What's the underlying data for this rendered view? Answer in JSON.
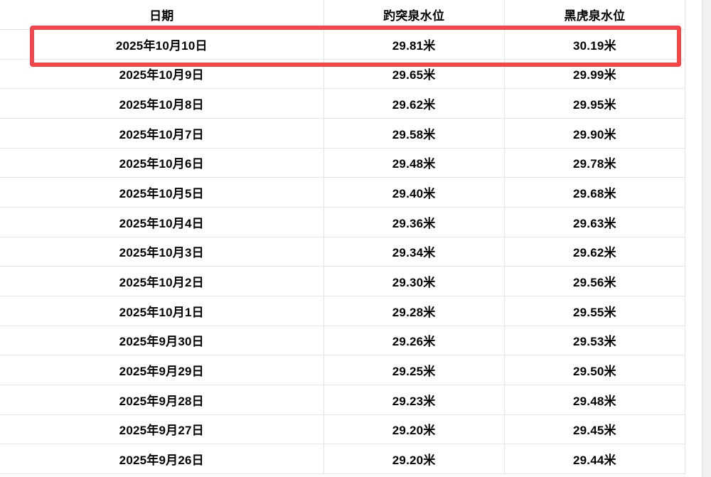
{
  "table": {
    "headers": [
      "日期",
      "趵突泉水位",
      "黑虎泉水位"
    ],
    "rows": [
      [
        "2025年10月10日",
        "29.81米",
        "30.19米"
      ],
      [
        "2025年10月9日",
        "29.65米",
        "29.99米"
      ],
      [
        "2025年10月8日",
        "29.62米",
        "29.95米"
      ],
      [
        "2025年10月7日",
        "29.58米",
        "29.90米"
      ],
      [
        "2025年10月6日",
        "29.48米",
        "29.78米"
      ],
      [
        "2025年10月5日",
        "29.40米",
        "29.68米"
      ],
      [
        "2025年10月4日",
        "29.36米",
        "29.63米"
      ],
      [
        "2025年10月3日",
        "29.34米",
        "29.62米"
      ],
      [
        "2025年10月2日",
        "29.30米",
        "29.56米"
      ],
      [
        "2025年10月1日",
        "29.28米",
        "29.55米"
      ],
      [
        "2025年9月30日",
        "29.26米",
        "29.53米"
      ],
      [
        "2025年9月29日",
        "29.25米",
        "29.50米"
      ],
      [
        "2025年9月28日",
        "29.23米",
        "29.48米"
      ],
      [
        "2025年9月27日",
        "29.20米",
        "29.45米"
      ],
      [
        "2025年9月26日",
        "29.20米",
        "29.44米"
      ]
    ],
    "highlighted_row_index": 0
  },
  "annotation": {
    "type": "red-highlight-box",
    "color": "#f2484b"
  },
  "colors": {
    "border": "#e5e5e5",
    "text": "#000000",
    "scrollbar_track": "#f1f1f1"
  }
}
